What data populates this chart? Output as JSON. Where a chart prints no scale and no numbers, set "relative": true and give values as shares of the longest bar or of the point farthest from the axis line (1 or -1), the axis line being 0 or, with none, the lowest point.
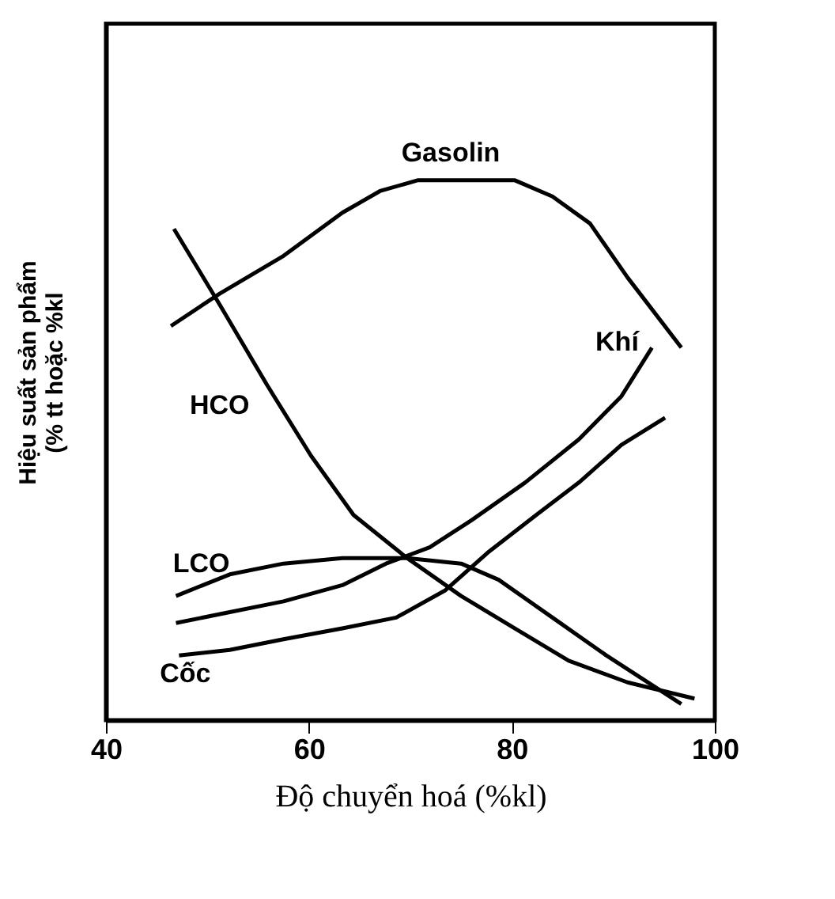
{
  "chart_data": {
    "type": "line",
    "relative": true,
    "xlabel": "Độ chuyển hoá (%kl)",
    "ylabel": "Hiệu suất sản phẩm\n(% tt hoặc %kl",
    "xlim": [
      40,
      100
    ],
    "xticks": [
      40,
      60,
      80,
      100
    ],
    "grid": false,
    "legend": false,
    "marker": "none",
    "line_style": "solid",
    "series": [
      {
        "name": "Gasolin",
        "color": "#000000",
        "x": [
          46.4,
          51.2,
          57.5,
          63.3,
          67.0,
          70.7,
          76.0,
          80.3,
          84.0,
          87.7,
          91.4,
          96.7
        ],
        "values": [
          0.73,
          0.79,
          0.86,
          0.94,
          0.98,
          1.0,
          1.0,
          1.0,
          0.97,
          0.92,
          0.82,
          0.69
        ]
      },
      {
        "name": "HCO",
        "color": "#000000",
        "x": [
          46.7,
          51.2,
          55.9,
          60.2,
          64.4,
          69.7,
          75.0,
          80.3,
          85.6,
          91.4,
          98.0
        ],
        "values": [
          0.91,
          0.77,
          0.62,
          0.49,
          0.38,
          0.3,
          0.23,
          0.17,
          0.11,
          0.07,
          0.04
        ]
      },
      {
        "name": "LCO",
        "color": "#000000",
        "x": [
          46.9,
          52.2,
          57.5,
          63.3,
          69.7,
          75.0,
          78.7,
          84.0,
          89.3,
          96.7
        ],
        "values": [
          0.23,
          0.27,
          0.29,
          0.3,
          0.3,
          0.29,
          0.26,
          0.19,
          0.12,
          0.03
        ]
      },
      {
        "name": "Khí",
        "color": "#000000",
        "x": [
          46.9,
          52.2,
          57.5,
          63.3,
          67.6,
          71.9,
          76.0,
          81.3,
          86.6,
          90.8,
          93.8
        ],
        "values": [
          0.18,
          0.2,
          0.22,
          0.25,
          0.29,
          0.32,
          0.37,
          0.44,
          0.52,
          0.6,
          0.69
        ]
      },
      {
        "name": "Cốc",
        "color": "#000000",
        "x": [
          47.2,
          52.2,
          57.5,
          63.3,
          68.6,
          73.4,
          77.6,
          82.4,
          86.6,
          90.8,
          95.1
        ],
        "values": [
          0.12,
          0.13,
          0.15,
          0.17,
          0.19,
          0.24,
          0.31,
          0.38,
          0.44,
          0.51,
          0.56
        ]
      }
    ]
  }
}
